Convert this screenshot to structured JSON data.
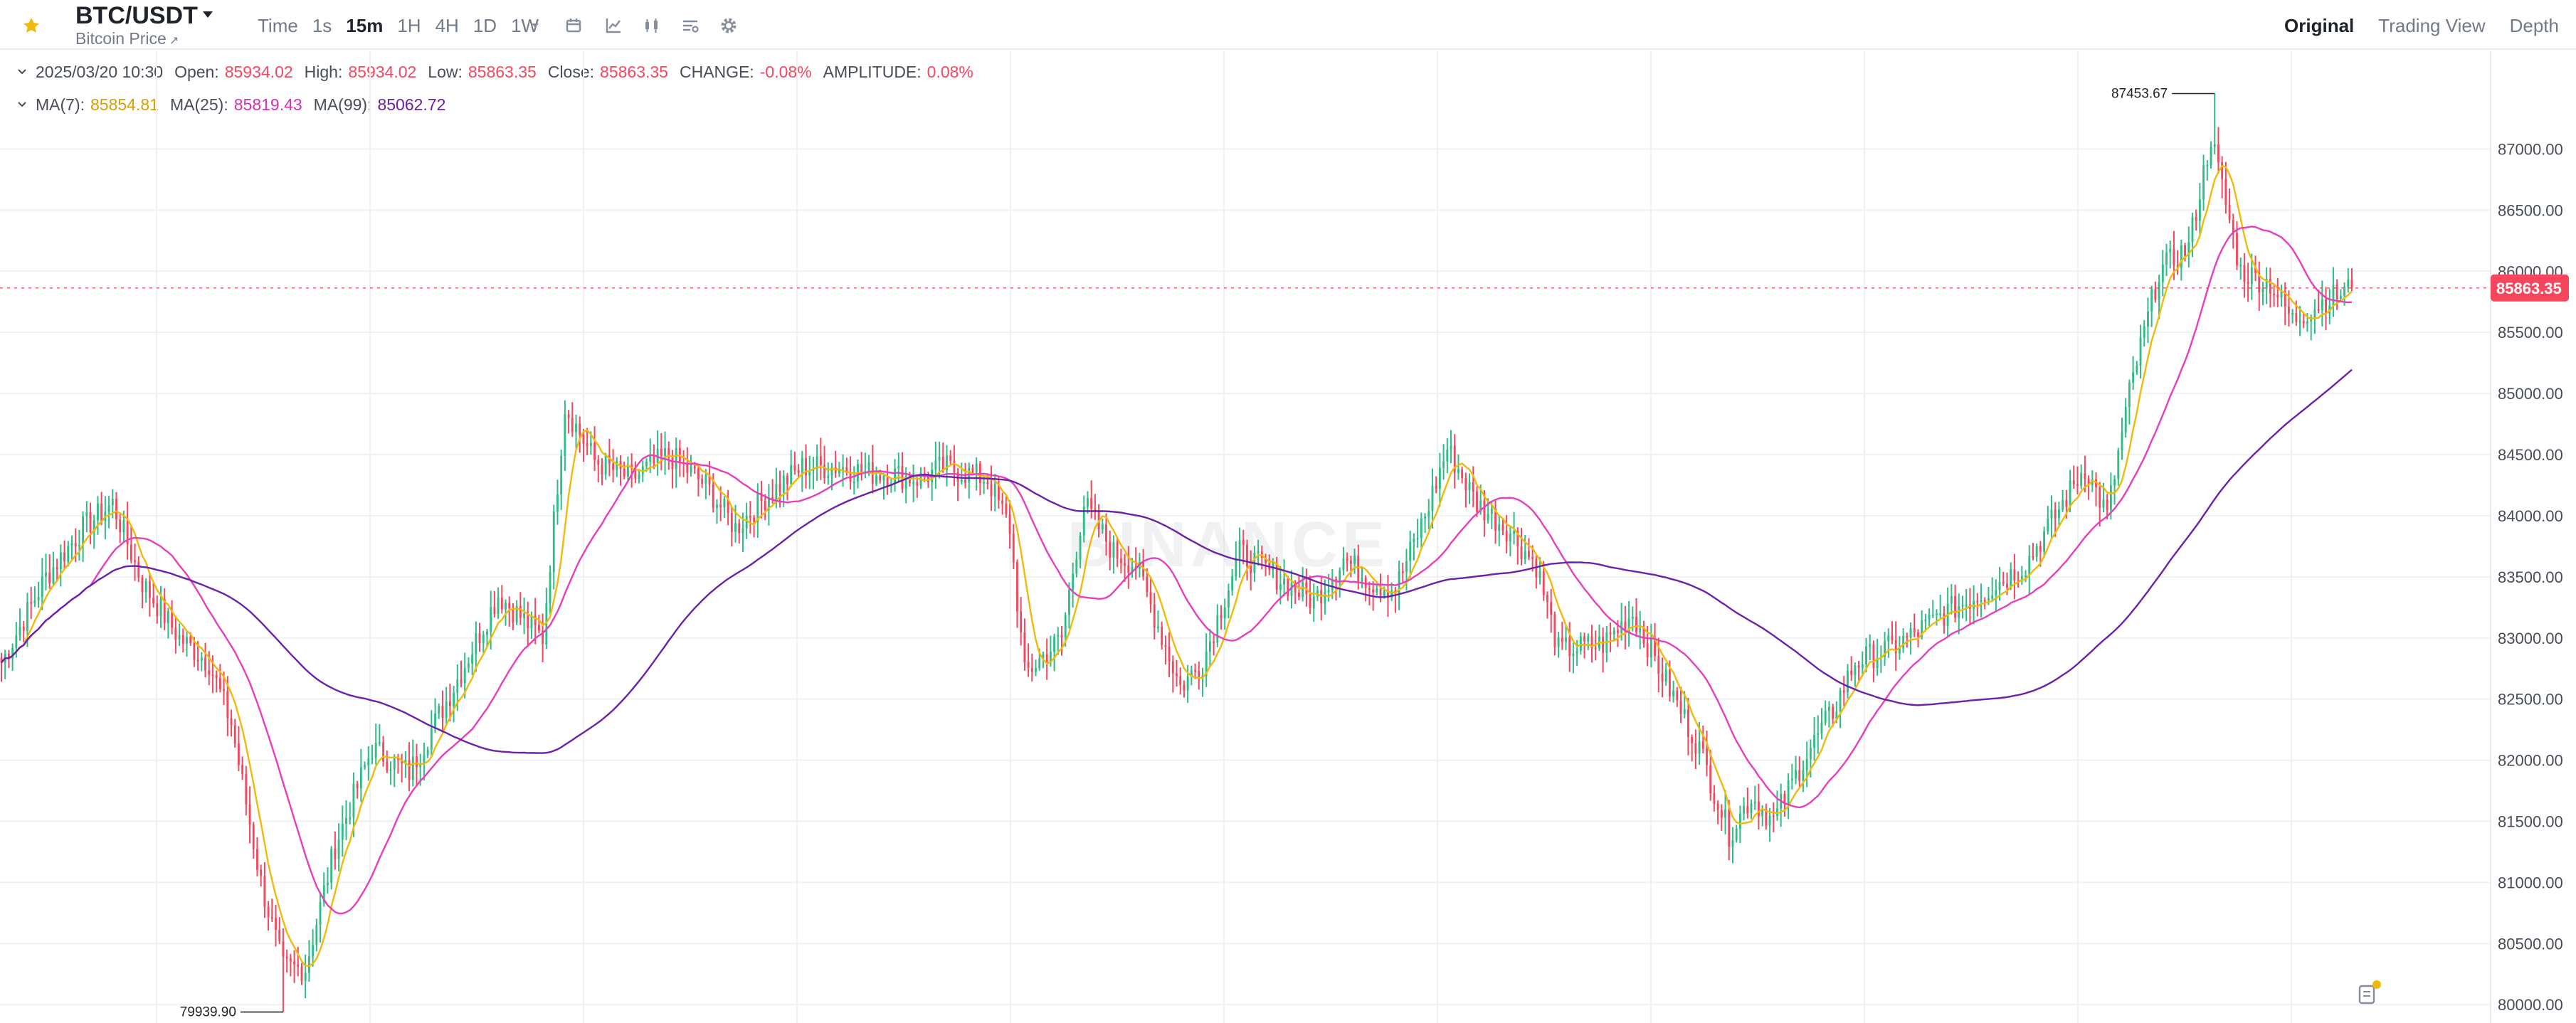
{
  "header": {
    "pair": "BTC/USDT",
    "subtitle": "Bitcoin Price",
    "subtitle_icon": "external-link-icon",
    "intervals": [
      "Time",
      "1s",
      "15m",
      "1H",
      "4H",
      "1D",
      "1W"
    ],
    "active_interval": "15m",
    "toolbar_icons": [
      "chevron-down-icon",
      "calendar-icon",
      "indicator-icon",
      "candle-type-icon",
      "layout-icon",
      "gear-icon"
    ],
    "views": [
      "Original",
      "Trading View",
      "Depth"
    ],
    "active_view": "Original"
  },
  "ohlc": {
    "date": "2025/03/20 10:30",
    "open_label": "Open:",
    "open": "85934.02",
    "high_label": "High:",
    "high": "85934.02",
    "low_label": "Low:",
    "low": "85863.35",
    "close_label": "Close:",
    "close": "85863.35",
    "change_label": "CHANGE:",
    "change": "-0.08%",
    "amplitude_label": "AMPLITUDE:",
    "amplitude": "0.08%"
  },
  "ma": {
    "ma7_label": "MA(7):",
    "ma7": "85854.81",
    "ma25_label": "MA(25):",
    "ma25": "85819.43",
    "ma99_label": "MA(99):",
    "ma99": "85062.72"
  },
  "colors": {
    "up": "#2ebd85",
    "down": "#f6465d",
    "ma7": "#f0b90b",
    "ma25": "#e63fbd",
    "ma99": "#6b21a8",
    "ma7_text": "#d89f00",
    "ma25_text": "#d631b1",
    "ma99_text": "#6b1fa5"
  },
  "watermark": "BINANCE",
  "chart_data": {
    "type": "candlestick",
    "symbol": "BTC/USDT",
    "interval": "15m",
    "ylim": [
      79850,
      87800
    ],
    "y_ticks": [
      "87000.00",
      "86500.00",
      "86000.00",
      "85500.00",
      "85000.00",
      "84500.00",
      "84000.00",
      "83500.00",
      "83000.00",
      "82500.00",
      "82000.00",
      "81500.00",
      "81000.00",
      "80500.00",
      "80000.00"
    ],
    "y_tick_values": [
      87000,
      86500,
      86000,
      85500,
      85000,
      84500,
      84000,
      83500,
      83000,
      82500,
      82000,
      81500,
      81000,
      80500,
      80000
    ],
    "last_price": 85863.35,
    "last_price_label": "85863.35",
    "max_label": "87453.67",
    "max_value": 87453.67,
    "min_label": "79939.90",
    "min_value": 79939.9,
    "grid": true,
    "price_path": [
      [
        0,
        82800
      ],
      [
        12,
        83500
      ],
      [
        22,
        83900
      ],
      [
        30,
        84100
      ],
      [
        38,
        83450
      ],
      [
        48,
        83000
      ],
      [
        56,
        82800
      ],
      [
        62,
        82300
      ],
      [
        70,
        81000
      ],
      [
        76,
        80300
      ],
      [
        82,
        80300
      ],
      [
        90,
        81300
      ],
      [
        100,
        82100
      ],
      [
        110,
        81900
      ],
      [
        122,
        82600
      ],
      [
        134,
        83350
      ],
      [
        146,
        83000
      ],
      [
        152,
        84900
      ],
      [
        160,
        84450
      ],
      [
        170,
        84300
      ],
      [
        180,
        84500
      ],
      [
        190,
        84250
      ],
      [
        198,
        83900
      ],
      [
        206,
        84150
      ],
      [
        216,
        84400
      ],
      [
        226,
        84400
      ],
      [
        234,
        84350
      ],
      [
        238,
        84350
      ],
      [
        248,
        84300
      ],
      [
        254,
        84400
      ],
      [
        266,
        84300
      ],
      [
        272,
        83900
      ],
      [
        276,
        82700
      ],
      [
        286,
        83000
      ],
      [
        292,
        84100
      ],
      [
        300,
        83700
      ],
      [
        306,
        83600
      ],
      [
        312,
        83100
      ],
      [
        318,
        82600
      ],
      [
        324,
        82800
      ],
      [
        334,
        83700
      ],
      [
        344,
        83500
      ],
      [
        354,
        83300
      ],
      [
        362,
        83650
      ],
      [
        370,
        83450
      ],
      [
        376,
        83400
      ],
      [
        384,
        84000
      ],
      [
        390,
        84550
      ],
      [
        398,
        84100
      ],
      [
        406,
        83900
      ],
      [
        414,
        83600
      ],
      [
        420,
        82900
      ],
      [
        432,
        82950
      ],
      [
        440,
        83200
      ],
      [
        448,
        82700
      ],
      [
        458,
        82100
      ],
      [
        466,
        81400
      ],
      [
        472,
        81700
      ],
      [
        478,
        81500
      ],
      [
        486,
        82000
      ],
      [
        494,
        82400
      ],
      [
        500,
        82800
      ],
      [
        512,
        82950
      ],
      [
        524,
        83200
      ],
      [
        536,
        83400
      ],
      [
        546,
        83600
      ],
      [
        556,
        84100
      ],
      [
        562,
        84400
      ],
      [
        568,
        84000
      ],
      [
        574,
        85000
      ],
      [
        582,
        86000
      ],
      [
        590,
        86200
      ],
      [
        596,
        87100
      ],
      [
        604,
        86000
      ],
      [
        612,
        85900
      ],
      [
        618,
        85600
      ],
      [
        626,
        85750
      ],
      [
        634,
        85863
      ]
    ]
  }
}
